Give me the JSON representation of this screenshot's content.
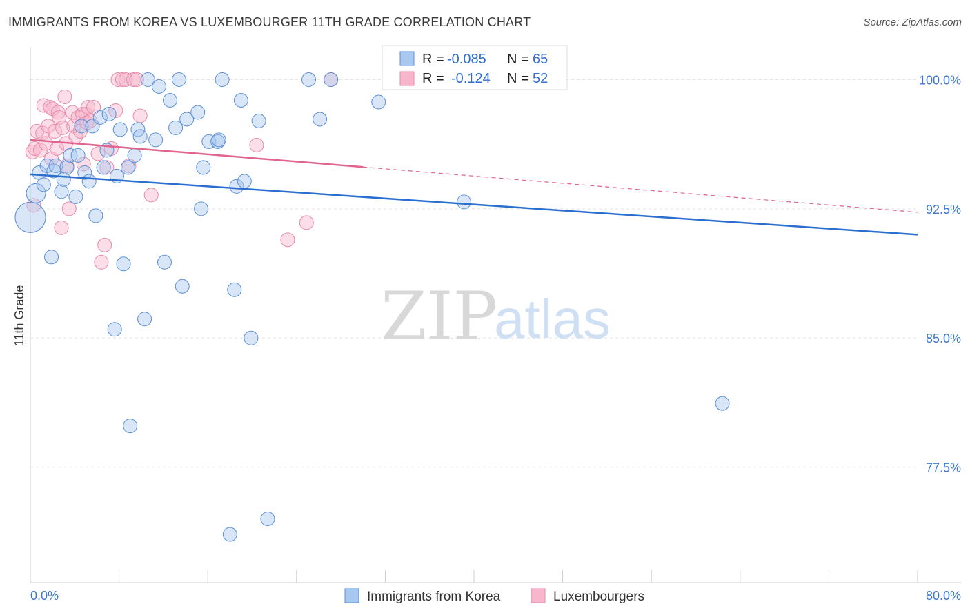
{
  "title": "IMMIGRANTS FROM KOREA VS LUXEMBOURGER 11TH GRADE CORRELATION CHART",
  "source": "Source: ZipAtlas.com",
  "watermark": {
    "zip": "ZIP",
    "atlas": "atlas"
  },
  "legend": {
    "rows": [
      {
        "r_label": "R =",
        "r_value": "-0.085",
        "n_label": "N =",
        "n_value": "65"
      },
      {
        "r_label": "R =",
        "r_value": "-0.124",
        "n_label": "N =",
        "n_value": "52"
      }
    ]
  },
  "bottom_legend": [
    "Immigrants from Korea",
    "Luxembourgers"
  ],
  "colors": {
    "blue_fill": "#a8c8f0",
    "blue_stroke": "#5a8fd6",
    "blue_line": "#2a6fd0",
    "pink_fill": "#f7b6cb",
    "pink_stroke": "#e88aa8",
    "pink_line": "#e0648c",
    "grid": "#e3e3e3",
    "tick_text": "#3d78c8"
  },
  "chart_data": {
    "type": "scatter",
    "title": "IMMIGRANTS FROM KOREA VS LUXEMBOURGER 11TH GRADE CORRELATION CHART",
    "xlabel": "",
    "ylabel": "11th Grade",
    "xlim": [
      0,
      80
    ],
    "ylim": [
      70.8,
      101.5
    ],
    "x_tick_labels": [
      "0.0%",
      "80.0%"
    ],
    "y_ticks": [
      100.0,
      92.5,
      85.0,
      77.5
    ],
    "y_tick_labels": [
      "100.0%",
      "92.5%",
      "85.0%",
      "77.5%"
    ],
    "grid": true,
    "legend_placement": "top-center",
    "series": [
      {
        "name": "Immigrants from Korea",
        "r": -0.085,
        "n": 65,
        "trend": {
          "x": [
            0,
            80
          ],
          "y": [
            94.5,
            91.0
          ],
          "dashed_from_x": null
        },
        "points": [
          [
            0.0,
            92.0,
            22
          ],
          [
            0.5,
            93.4,
            14
          ],
          [
            0.8,
            94.6,
            10
          ],
          [
            1.2,
            93.9,
            10
          ],
          [
            1.5,
            95.0,
            10
          ],
          [
            1.9,
            89.7,
            10
          ],
          [
            2.1,
            94.7,
            10
          ],
          [
            2.3,
            95.0,
            10
          ],
          [
            2.8,
            93.5,
            10
          ],
          [
            3.0,
            94.2,
            10
          ],
          [
            3.3,
            94.9,
            10
          ],
          [
            3.6,
            95.6,
            10
          ],
          [
            4.1,
            93.2,
            10
          ],
          [
            4.3,
            95.6,
            10
          ],
          [
            4.6,
            97.3,
            10
          ],
          [
            4.9,
            94.6,
            10
          ],
          [
            5.3,
            94.1,
            10
          ],
          [
            5.6,
            97.3,
            10
          ],
          [
            5.9,
            92.1,
            10
          ],
          [
            6.3,
            97.8,
            10
          ],
          [
            6.6,
            94.9,
            10
          ],
          [
            6.9,
            95.9,
            10
          ],
          [
            7.1,
            98.0,
            10
          ],
          [
            7.6,
            85.5,
            10
          ],
          [
            7.8,
            94.4,
            10
          ],
          [
            8.1,
            97.1,
            10
          ],
          [
            8.4,
            89.3,
            10
          ],
          [
            8.8,
            94.9,
            10
          ],
          [
            9.0,
            79.9,
            10
          ],
          [
            9.4,
            95.6,
            10
          ],
          [
            9.7,
            97.1,
            10
          ],
          [
            9.9,
            96.7,
            10
          ],
          [
            10.3,
            86.1,
            10
          ],
          [
            10.6,
            100.0,
            10
          ],
          [
            11.3,
            96.5,
            10
          ],
          [
            11.6,
            99.6,
            10
          ],
          [
            12.1,
            89.4,
            10
          ],
          [
            12.6,
            98.8,
            10
          ],
          [
            13.1,
            97.2,
            10
          ],
          [
            13.4,
            100.0,
            10
          ],
          [
            13.7,
            88.0,
            10
          ],
          [
            14.1,
            97.7,
            10
          ],
          [
            15.1,
            98.1,
            10
          ],
          [
            15.4,
            92.5,
            10
          ],
          [
            15.6,
            94.9,
            10
          ],
          [
            16.1,
            96.4,
            10
          ],
          [
            16.9,
            96.4,
            10
          ],
          [
            17.0,
            96.5,
            10
          ],
          [
            17.3,
            100.0,
            10
          ],
          [
            18.0,
            73.6,
            10
          ],
          [
            18.4,
            87.8,
            10
          ],
          [
            18.6,
            93.8,
            10
          ],
          [
            19.0,
            98.8,
            10
          ],
          [
            19.3,
            94.1,
            10
          ],
          [
            19.9,
            85.0,
            10
          ],
          [
            20.6,
            97.6,
            10
          ],
          [
            21.4,
            74.5,
            10
          ],
          [
            25.1,
            100.0,
            10
          ],
          [
            26.1,
            97.7,
            10
          ],
          [
            27.1,
            100.0,
            10
          ],
          [
            31.4,
            98.7,
            10
          ],
          [
            39.1,
            92.9,
            10
          ],
          [
            62.4,
            81.2,
            10
          ]
        ]
      },
      {
        "name": "Luxembourgers",
        "r": -0.124,
        "n": 52,
        "trend": {
          "x": [
            0,
            80
          ],
          "y": [
            96.5,
            92.3
          ],
          "dashed_from_x": 30
        },
        "points": [
          [
            0.2,
            95.8,
            10
          ],
          [
            0.3,
            92.7,
            10
          ],
          [
            0.4,
            96.0,
            10
          ],
          [
            0.6,
            97.0,
            10
          ],
          [
            0.9,
            95.9,
            10
          ],
          [
            1.1,
            96.9,
            10
          ],
          [
            1.2,
            98.5,
            10
          ],
          [
            1.4,
            96.3,
            10
          ],
          [
            1.6,
            97.3,
            10
          ],
          [
            1.8,
            98.4,
            10
          ],
          [
            1.9,
            95.4,
            10
          ],
          [
            2.0,
            98.3,
            10
          ],
          [
            2.2,
            97.0,
            10
          ],
          [
            2.4,
            96.0,
            10
          ],
          [
            2.5,
            98.1,
            10
          ],
          [
            2.6,
            97.8,
            10
          ],
          [
            2.8,
            91.4,
            10
          ],
          [
            2.9,
            97.2,
            10
          ],
          [
            3.1,
            99.0,
            10
          ],
          [
            3.2,
            96.3,
            10
          ],
          [
            3.3,
            95.0,
            10
          ],
          [
            3.5,
            92.5,
            10
          ],
          [
            3.8,
            98.1,
            10
          ],
          [
            3.9,
            97.3,
            10
          ],
          [
            4.1,
            96.7,
            10
          ],
          [
            4.3,
            97.8,
            10
          ],
          [
            4.5,
            97.0,
            10
          ],
          [
            4.7,
            98.0,
            10
          ],
          [
            4.8,
            95.1,
            10
          ],
          [
            5.0,
            98.0,
            10
          ],
          [
            5.1,
            97.5,
            10
          ],
          [
            5.2,
            98.4,
            10
          ],
          [
            5.4,
            97.6,
            10
          ],
          [
            5.7,
            98.4,
            10
          ],
          [
            6.1,
            95.7,
            10
          ],
          [
            6.4,
            89.4,
            10
          ],
          [
            6.7,
            90.4,
            10
          ],
          [
            6.9,
            94.9,
            10
          ],
          [
            7.3,
            96.0,
            10
          ],
          [
            7.7,
            98.2,
            10
          ],
          [
            7.9,
            100.0,
            10
          ],
          [
            8.3,
            100.0,
            10
          ],
          [
            8.6,
            100.0,
            10
          ],
          [
            8.9,
            95.0,
            10
          ],
          [
            9.3,
            100.0,
            10
          ],
          [
            9.6,
            100.0,
            10
          ],
          [
            9.9,
            97.9,
            10
          ],
          [
            10.9,
            93.3,
            10
          ],
          [
            20.4,
            96.2,
            10
          ],
          [
            23.2,
            90.7,
            10
          ],
          [
            24.9,
            91.7,
            10
          ],
          [
            27.1,
            100.0,
            10
          ]
        ]
      }
    ]
  }
}
